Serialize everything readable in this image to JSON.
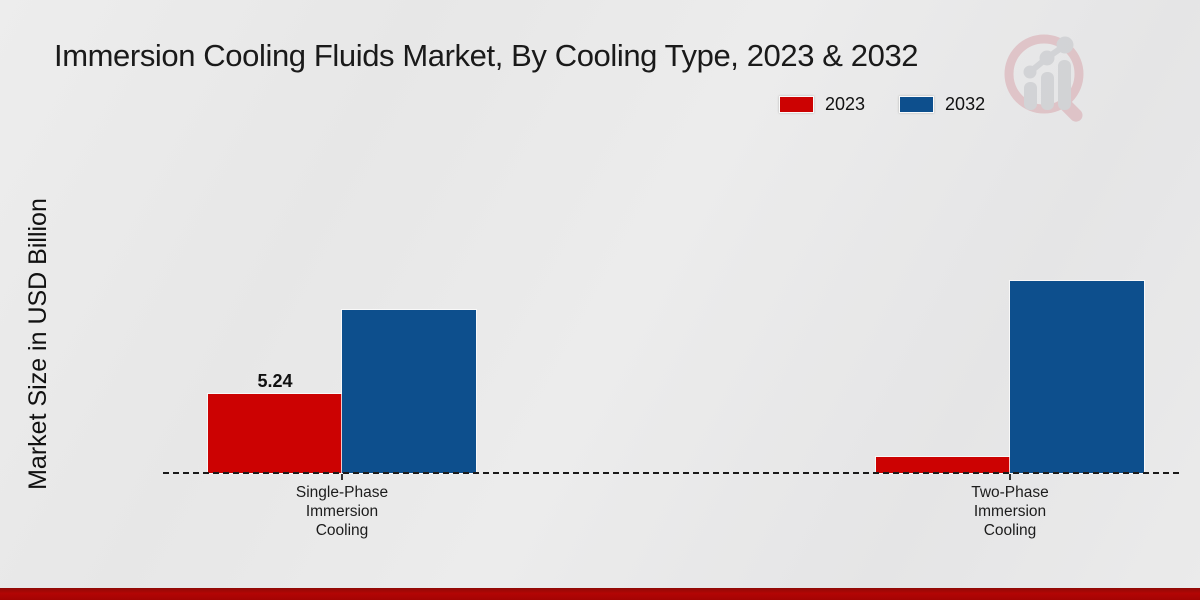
{
  "title": "Immersion Cooling Fluids Market, By Cooling Type, 2023 & 2032",
  "y_axis_label": "Market Size in USD Billion",
  "legend": {
    "items": [
      {
        "label": "2023",
        "color": "#cc0202"
      },
      {
        "label": "2032",
        "color": "#0d4f8d"
      }
    ]
  },
  "watermark_icon": "magnifier-bar-chart-logo-icon",
  "colors": {
    "series_2023": "#cc0202",
    "series_2032": "#0d4f8d",
    "background": "#e9e9e9",
    "bottom_band": "#b30505",
    "baseline": "#1a1a1a"
  },
  "chart_data": {
    "type": "bar",
    "title": "Immersion Cooling Fluids Market, By Cooling Type, 2023 & 2032",
    "ylabel": "Market Size in USD Billion",
    "xlabel": "",
    "categories": [
      "Single-Phase\nImmersion\nCooling",
      "Two-Phase\nImmersion\nCooling"
    ],
    "series": [
      {
        "name": "2023",
        "color": "#cc0202",
        "values": [
          5.24,
          1.06
        ]
      },
      {
        "name": "2032",
        "color": "#0d4f8d",
        "values": [
          10.81,
          12.73
        ]
      }
    ],
    "bar_labels": [
      [
        "5.24",
        ""
      ],
      [
        "",
        ""
      ]
    ],
    "ylim": [
      0,
      14
    ],
    "grid": false,
    "legend_position": "top-right",
    "baseline_style": "dashed"
  }
}
